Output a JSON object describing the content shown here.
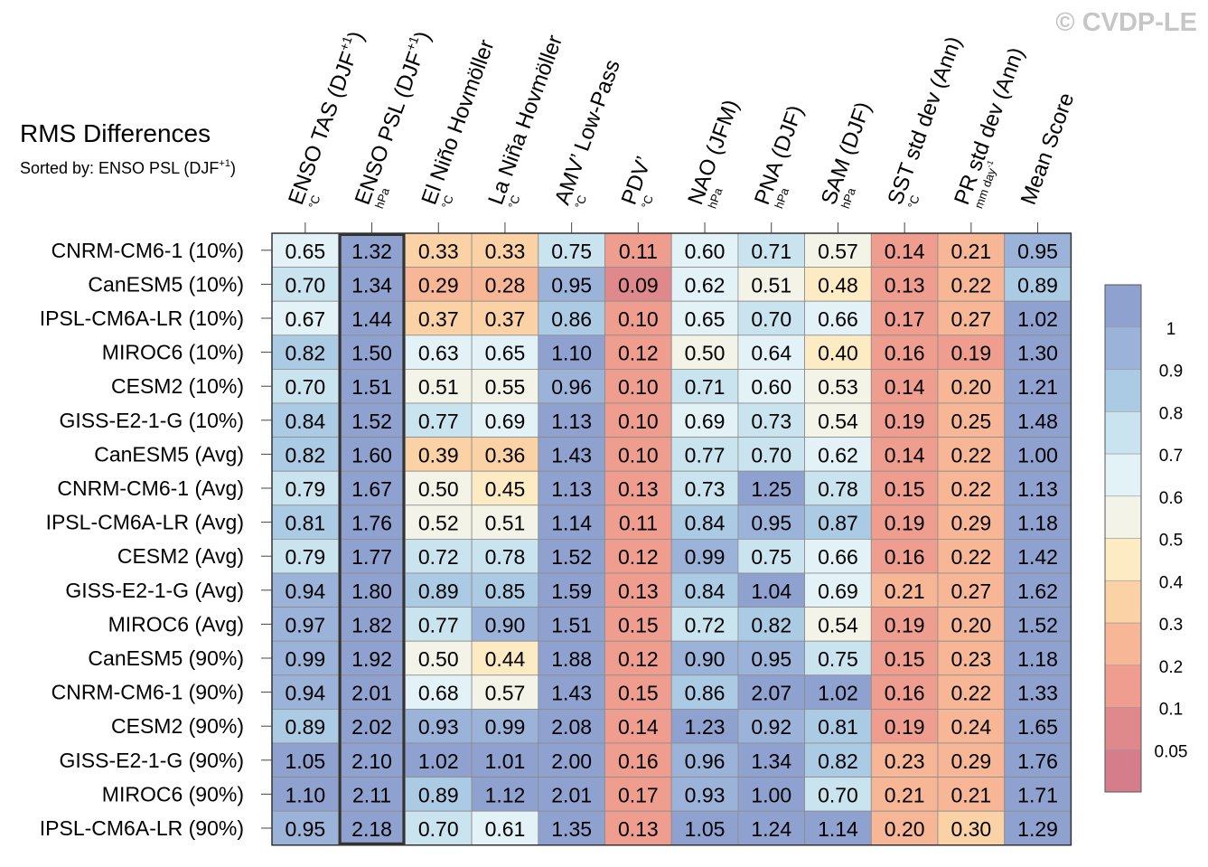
{
  "watermark": "© CVDP-LE",
  "chart_data": {
    "type": "heatmap",
    "title": "RMS Differences",
    "subtitle": {
      "prefix": "Sorted by: ENSO PSL (DJF",
      "sup": "+1",
      "suffix": ")"
    },
    "sorted_column_index": 1,
    "columns": [
      {
        "label": "ENSO TAS (DJF",
        "sup": "+1",
        "suffix": ")",
        "unit": "°C"
      },
      {
        "label": "ENSO PSL (DJF",
        "sup": "+1",
        "suffix": ")",
        "unit": "hPa"
      },
      {
        "label": "El Niño Hovmöller",
        "unit": "°C"
      },
      {
        "label": "La Niña Hovmöller",
        "unit": "°C"
      },
      {
        "label": "AMV’ Low-Pass",
        "unit": "°C"
      },
      {
        "label": "PDV’",
        "unit": "°C"
      },
      {
        "label": "NAO (JFM)",
        "unit": "hPa"
      },
      {
        "label": "PNA (DJF)",
        "unit": "hPa"
      },
      {
        "label": "SAM (DJF)",
        "unit": "hPa"
      },
      {
        "label": "SST std dev (Ann)",
        "unit": "°C"
      },
      {
        "label": "PR std dev (Ann)",
        "unit": "mm day",
        "unit_sup": "-1"
      },
      {
        "label": "Mean Score",
        "unit": ""
      }
    ],
    "rows": [
      "CNRM-CM6-1 (10%)",
      "CanESM5 (10%)",
      "IPSL-CM6A-LR (10%)",
      "MIROC6 (10%)",
      "CESM2 (10%)",
      "GISS-E2-1-G (10%)",
      "CanESM5 (Avg)",
      "CNRM-CM6-1 (Avg)",
      "IPSL-CM6A-LR (Avg)",
      "CESM2 (Avg)",
      "GISS-E2-1-G (Avg)",
      "MIROC6 (Avg)",
      "CanESM5 (90%)",
      "CNRM-CM6-1 (90%)",
      "CESM2 (90%)",
      "GISS-E2-1-G (90%)",
      "MIROC6 (90%)",
      "IPSL-CM6A-LR (90%)"
    ],
    "values": [
      [
        "0.65",
        "1.32",
        "0.33",
        "0.33",
        "0.75",
        "0.11",
        "0.60",
        "0.71",
        "0.57",
        "0.14",
        "0.21",
        "0.95"
      ],
      [
        "0.70",
        "1.34",
        "0.29",
        "0.28",
        "0.95",
        "0.09",
        "0.62",
        "0.51",
        "0.48",
        "0.13",
        "0.22",
        "0.89"
      ],
      [
        "0.67",
        "1.44",
        "0.37",
        "0.37",
        "0.86",
        "0.10",
        "0.65",
        "0.70",
        "0.66",
        "0.17",
        "0.27",
        "1.02"
      ],
      [
        "0.82",
        "1.50",
        "0.63",
        "0.65",
        "1.10",
        "0.12",
        "0.50",
        "0.64",
        "0.40",
        "0.16",
        "0.19",
        "1.30"
      ],
      [
        "0.70",
        "1.51",
        "0.51",
        "0.55",
        "0.96",
        "0.10",
        "0.71",
        "0.60",
        "0.53",
        "0.14",
        "0.20",
        "1.21"
      ],
      [
        "0.84",
        "1.52",
        "0.77",
        "0.69",
        "1.13",
        "0.10",
        "0.69",
        "0.73",
        "0.54",
        "0.19",
        "0.25",
        "1.48"
      ],
      [
        "0.82",
        "1.60",
        "0.39",
        "0.36",
        "1.43",
        "0.10",
        "0.77",
        "0.70",
        "0.62",
        "0.14",
        "0.22",
        "1.00"
      ],
      [
        "0.79",
        "1.67",
        "0.50",
        "0.45",
        "1.13",
        "0.13",
        "0.73",
        "1.25",
        "0.78",
        "0.15",
        "0.22",
        "1.13"
      ],
      [
        "0.81",
        "1.76",
        "0.52",
        "0.51",
        "1.14",
        "0.11",
        "0.84",
        "0.95",
        "0.87",
        "0.19",
        "0.29",
        "1.18"
      ],
      [
        "0.79",
        "1.77",
        "0.72",
        "0.78",
        "1.52",
        "0.12",
        "0.99",
        "0.75",
        "0.66",
        "0.16",
        "0.22",
        "1.42"
      ],
      [
        "0.94",
        "1.80",
        "0.89",
        "0.85",
        "1.59",
        "0.13",
        "0.84",
        "1.04",
        "0.69",
        "0.21",
        "0.27",
        "1.62"
      ],
      [
        "0.97",
        "1.82",
        "0.77",
        "0.90",
        "1.51",
        "0.15",
        "0.72",
        "0.82",
        "0.54",
        "0.19",
        "0.20",
        "1.52"
      ],
      [
        "0.99",
        "1.92",
        "0.50",
        "0.44",
        "1.88",
        "0.12",
        "0.90",
        "0.95",
        "0.75",
        "0.15",
        "0.23",
        "1.18"
      ],
      [
        "0.94",
        "2.01",
        "0.68",
        "0.57",
        "1.43",
        "0.15",
        "0.86",
        "2.07",
        "1.02",
        "0.16",
        "0.22",
        "1.33"
      ],
      [
        "0.89",
        "2.02",
        "0.93",
        "0.99",
        "2.08",
        "0.14",
        "1.23",
        "0.92",
        "0.81",
        "0.19",
        "0.24",
        "1.65"
      ],
      [
        "1.05",
        "2.10",
        "1.02",
        "1.01",
        "2.00",
        "0.16",
        "0.96",
        "1.34",
        "0.82",
        "0.23",
        "0.29",
        "1.76"
      ],
      [
        "1.10",
        "2.11",
        "0.89",
        "1.12",
        "2.01",
        "0.17",
        "0.93",
        "1.00",
        "0.70",
        "0.21",
        "0.21",
        "1.71"
      ],
      [
        "0.95",
        "2.18",
        "0.70",
        "0.61",
        "1.35",
        "0.13",
        "1.05",
        "1.24",
        "1.14",
        "0.20",
        "0.30",
        "1.29"
      ]
    ],
    "colorbar": {
      "thresholds": [
        0.05,
        0.1,
        0.2,
        0.3,
        0.4,
        0.5,
        0.6,
        0.7,
        0.8,
        0.9,
        1
      ],
      "tick_labels": [
        "0.05",
        "0.1",
        "0.2",
        "0.3",
        "0.4",
        "0.5",
        "0.6",
        "0.7",
        "0.8",
        "0.9",
        "1"
      ],
      "colors": [
        "#d67d8c",
        "#e0898c",
        "#ee9d8e",
        "#f7b796",
        "#fbd1a6",
        "#fdebc3",
        "#f3f3e8",
        "#e3f2f7",
        "#c9e3ef",
        "#abcbe4",
        "#9bb3d8",
        "#8fa1cf"
      ]
    }
  }
}
